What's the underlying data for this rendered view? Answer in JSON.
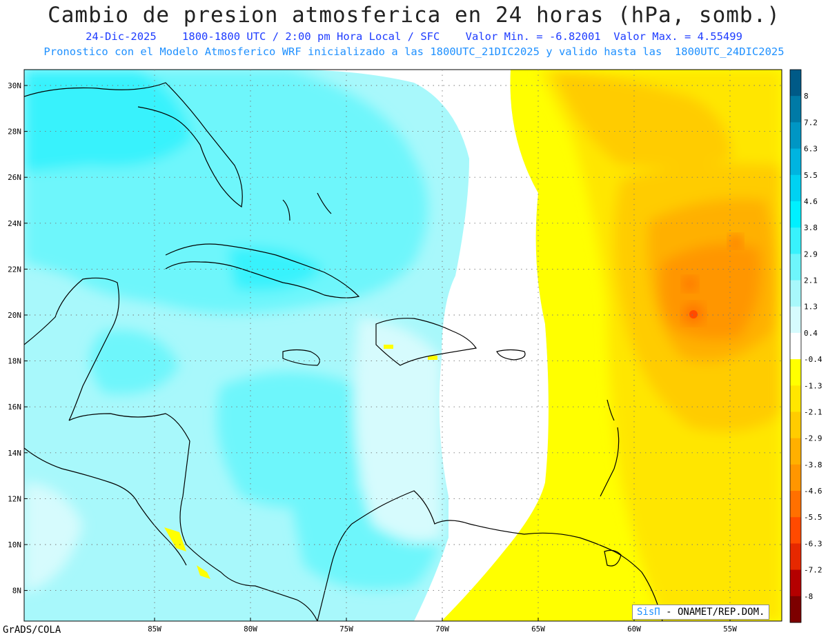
{
  "header": {
    "title": "Cambio de presion atmosferica en 24 horas (hPa, somb.)",
    "date": "24-Dic-2025",
    "time": "1800-1800 UTC / 2:00 pm Hora Local / SFC",
    "min_label": "Valor Min. = -6.82001",
    "max_label": "Valor Max. = 4.55499",
    "model_line": "Pronostico con el Modelo Atmosferico WRF inicializado a las 1800UTC_21DIC2025 y valido hasta las  1800UTC_24DIC2025"
  },
  "axes": {
    "lat_labels": [
      "30N",
      "28N",
      "26N",
      "24N",
      "22N",
      "20N",
      "18N",
      "16N",
      "14N",
      "12N",
      "10N",
      "8N"
    ],
    "lon_labels": [
      "85W",
      "80W",
      "75W",
      "70W",
      "65W",
      "60W",
      "55W"
    ]
  },
  "colorbar": {
    "labels": [
      "8",
      "7.2",
      "6.3",
      "5.5",
      "4.6",
      "3.8",
      "2.9",
      "2.1",
      "1.3",
      "0.4",
      "-0.4",
      "-1.3",
      "-2.1",
      "-2.9",
      "-3.8",
      "-4.6",
      "-5.5",
      "-6.3",
      "-7.2",
      "-8"
    ],
    "colors": [
      "#005a87",
      "#007aa6",
      "#0096c4",
      "#00b4e0",
      "#00d2f2",
      "#00f0ff",
      "#38f2fc",
      "#6ef6fb",
      "#a8f8fb",
      "#d6fbfd",
      "#ffffff",
      "#ffff00",
      "#ffe600",
      "#ffcc00",
      "#ffb000",
      "#ff9600",
      "#ff7000",
      "#ff4a00",
      "#e62800",
      "#b40000",
      "#7d0000"
    ]
  },
  "credit": {
    "brand": "SisΠ",
    "text": " - ONAMET/REP.DOM."
  },
  "footer": {
    "software": "GrADS/COLA"
  }
}
